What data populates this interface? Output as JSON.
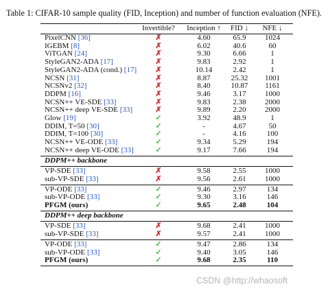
{
  "caption": "Table 1: CIFAR-10 sample quality (FID, Inception) and number of function evaluation (NFE).",
  "headers": {
    "name": "",
    "invertible": "Invertible?",
    "inception": "Inception ↑",
    "fid": "FID ↓",
    "nfe": "NFE ↓"
  },
  "marks": {
    "cross": "✗",
    "check": "✓"
  },
  "colors": {
    "cross": "#e0212b",
    "check": "#4db848",
    "citation": "#2255cc"
  },
  "groups": [
    {
      "rows": [
        {
          "name": "PixelCNN",
          "ref": "[36]",
          "inv": "cross",
          "inception": "4.60",
          "fid": "65.9",
          "nfe": "1024"
        },
        {
          "name": "IGEBM",
          "ref": "[8]",
          "inv": "cross",
          "inception": "6.02",
          "fid": "40.6",
          "nfe": "60"
        },
        {
          "name": "ViTGAN",
          "ref": "[24]",
          "inv": "cross",
          "inception": "9.30",
          "fid": "6.66",
          "nfe": "1"
        },
        {
          "name": "StyleGAN2-ADA",
          "ref": "[17]",
          "inv": "cross",
          "inception": "9.83",
          "fid": "2.92",
          "nfe": "1"
        },
        {
          "name": "StyleGAN2-ADA (cond.)",
          "ref": "[17]",
          "inv": "cross",
          "inception": "10.14",
          "fid": "2.42",
          "nfe": "1"
        },
        {
          "name": "NCSN",
          "ref": "[31]",
          "inv": "cross",
          "inception": "8.87",
          "fid": "25.32",
          "nfe": "1001"
        },
        {
          "name": "NCSNv2",
          "ref": "[32]",
          "inv": "cross",
          "inception": "8.40",
          "fid": "10.87",
          "nfe": "1161"
        },
        {
          "name": "DDPM",
          "ref": "[16]",
          "inv": "cross",
          "inception": "9.46",
          "fid": "3.17",
          "nfe": "1000"
        },
        {
          "name": "NCSN++ VE-SDE",
          "ref": "[33]",
          "inv": "cross",
          "inception": "9.83",
          "fid": "2.38",
          "nfe": "2000"
        },
        {
          "name": "NCSN++ deep VE-SDE",
          "ref": "[33]",
          "inv": "cross",
          "inception": "9.89",
          "fid": "2.20",
          "nfe": "2000"
        },
        {
          "name": "Glow",
          "ref": "[19]",
          "inv": "check",
          "inception": "3.92",
          "fid": "48.9",
          "nfe": "1"
        },
        {
          "name": "DDIM, T=50",
          "ref": "[30]",
          "inv": "check",
          "inception": "-",
          "fid": "4.67",
          "nfe": "50"
        },
        {
          "name": "DDIM, T=100",
          "ref": "[30]",
          "inv": "check",
          "inception": "-",
          "fid": "4.16",
          "nfe": "100"
        },
        {
          "name": "NCSN++ VE-ODE",
          "ref": "[33]",
          "inv": "check",
          "inception": "9.34",
          "fid": "5.29",
          "nfe": "194"
        },
        {
          "name": "NCSN++ deep VE-ODE",
          "ref": "[33]",
          "inv": "check",
          "inception": "9.17",
          "fid": "7.66",
          "nfe": "194"
        }
      ]
    },
    {
      "section": "DDPM++ backbone",
      "rows": [
        {
          "name": "VP-SDE",
          "ref": "[33]",
          "inv": "cross",
          "inception": "9.58",
          "fid": "2.55",
          "nfe": "1000"
        },
        {
          "name": "sub-VP-SDE",
          "ref": "[33]",
          "inv": "cross",
          "inception": "9.56",
          "fid": "2.61",
          "nfe": "1000"
        }
      ]
    },
    {
      "rows": [
        {
          "name": "VP-ODE",
          "ref": "[33]",
          "inv": "check",
          "inception": "9.46",
          "fid": "2.97",
          "nfe": "134"
        },
        {
          "name": "sub-VP-ODE",
          "ref": "[33]",
          "inv": "check",
          "inception": "9.30",
          "fid": "3.16",
          "nfe": "146"
        },
        {
          "name": "PFGM (ours)",
          "ref": "",
          "inv": "check",
          "inception": "9.65",
          "fid": "2.48",
          "nfe": "104",
          "bold": true
        }
      ]
    },
    {
      "section": "DDPM++ deep backbone",
      "rows": [
        {
          "name": "VP-SDE",
          "ref": "[33]",
          "inv": "cross",
          "inception": "9.68",
          "fid": "2.41",
          "nfe": "1000"
        },
        {
          "name": "sub-VP-SDE",
          "ref": "[33]",
          "inv": "cross",
          "inception": "9.57",
          "fid": "2.41",
          "nfe": "1000"
        }
      ]
    },
    {
      "rows": [
        {
          "name": "VP-ODE",
          "ref": "[33]",
          "inv": "check",
          "inception": "9.47",
          "fid": "2.86",
          "nfe": "134"
        },
        {
          "name": "sub-VP-ODE",
          "ref": "[33]",
          "inv": "check",
          "inception": "9.40",
          "fid": "3.05",
          "nfe": "146"
        },
        {
          "name": "PFGM (ours)",
          "ref": "",
          "inv": "check",
          "inception": "9.68",
          "fid": "2.35",
          "nfe": "110",
          "bold": true
        }
      ]
    }
  ],
  "watermark": "CSDN @http://whaosoft"
}
